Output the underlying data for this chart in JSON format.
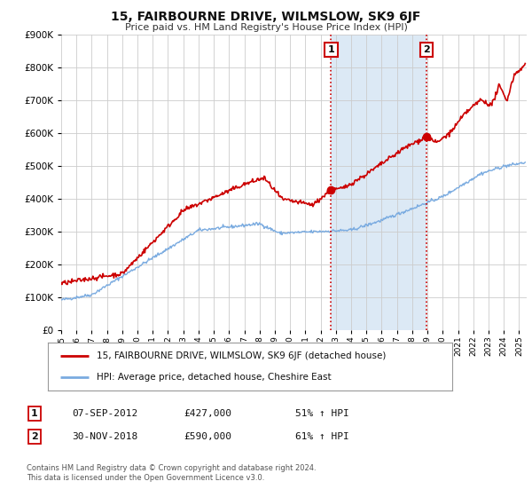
{
  "title": "15, FAIRBOURNE DRIVE, WILMSLOW, SK9 6JF",
  "subtitle": "Price paid vs. HM Land Registry's House Price Index (HPI)",
  "legend_line1": "15, FAIRBOURNE DRIVE, WILMSLOW, SK9 6JF (detached house)",
  "legend_line2": "HPI: Average price, detached house, Cheshire East",
  "marker1_date": "07-SEP-2012",
  "marker1_price": 427000,
  "marker1_label": "51% ↑ HPI",
  "marker2_date": "30-NOV-2018",
  "marker2_price": 590000,
  "marker2_label": "61% ↑ HPI",
  "footnote1": "Contains HM Land Registry data © Crown copyright and database right 2024.",
  "footnote2": "This data is licensed under the Open Government Licence v3.0.",
  "line1_color": "#cc0000",
  "line2_color": "#7aabe0",
  "plot_bg_color": "#ffffff",
  "grid_color": "#cccccc",
  "vline_color": "#cc0000",
  "shade_color": "#dce9f5",
  "ylim": [
    0,
    900000
  ],
  "xlim_start": 1995.0,
  "xlim_end": 2025.5,
  "marker1_x": 2012.68,
  "marker2_x": 2018.92
}
